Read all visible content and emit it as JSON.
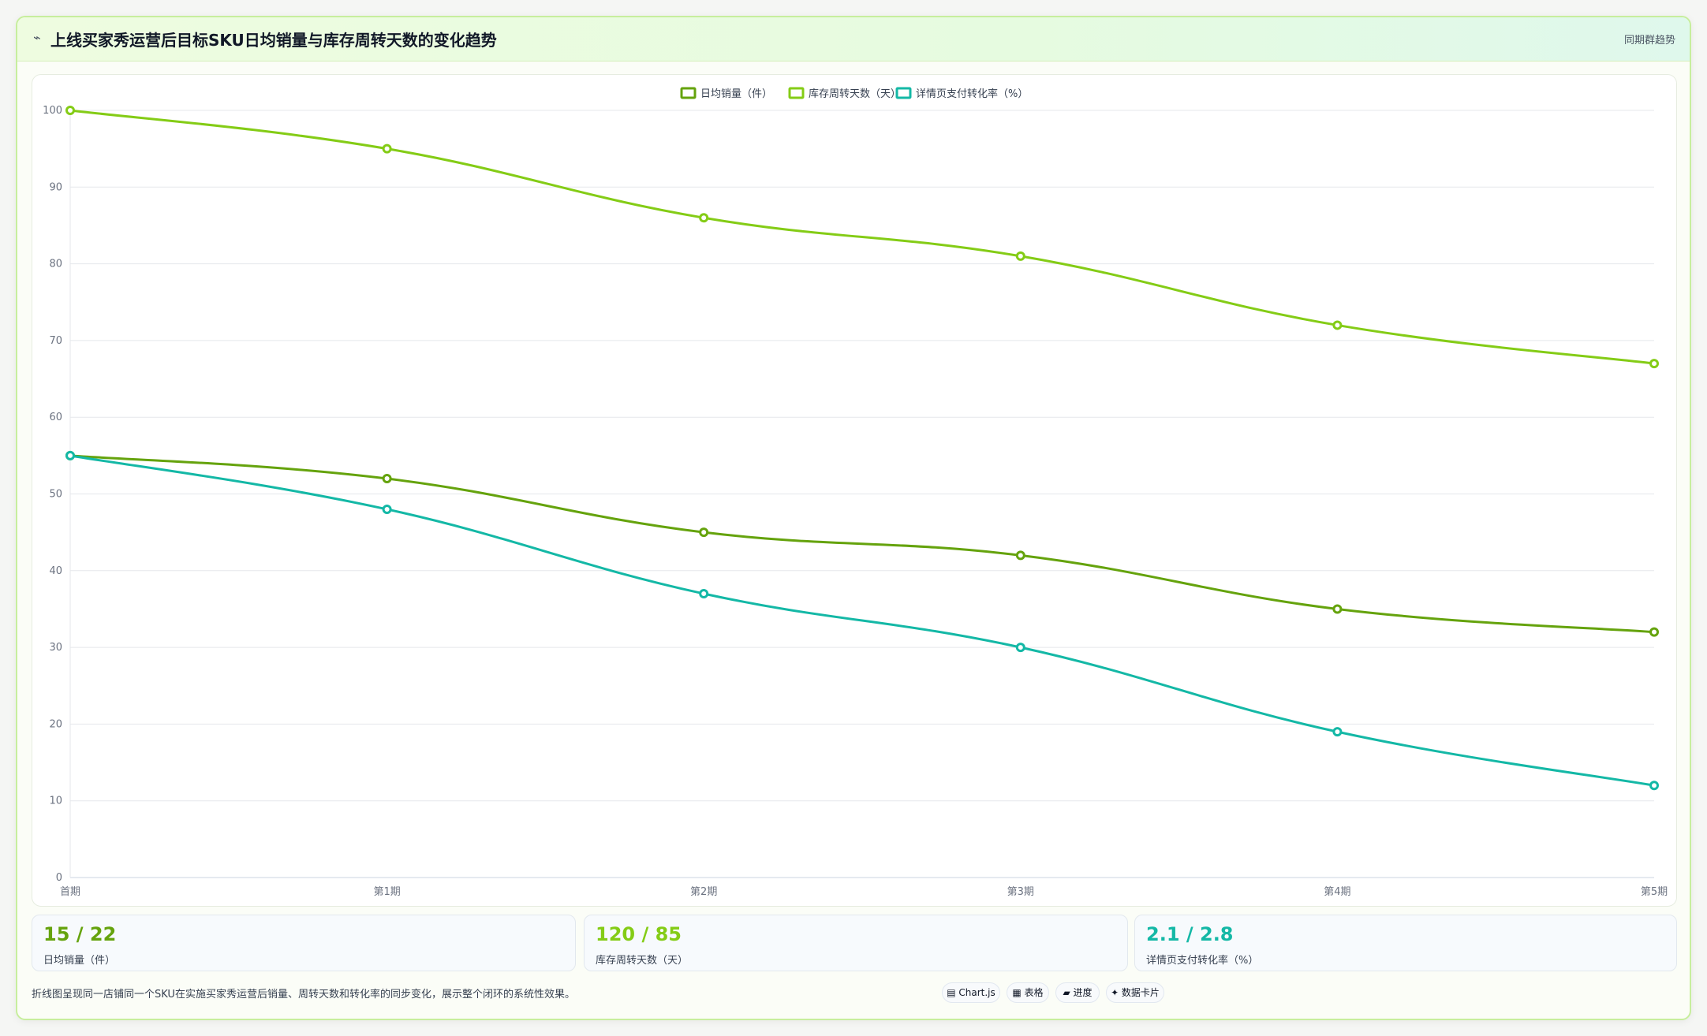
{
  "header": {
    "icon": "trend-icon",
    "icon_glyph": "⌁",
    "title": "上线买家秀运营后目标SKU日均销量与库存周转天数的变化趋势",
    "tag": "同期群趋势"
  },
  "chart_data": {
    "type": "line",
    "categories": [
      "首期",
      "第1期",
      "第2期",
      "第3期",
      "第4期",
      "第5期"
    ],
    "ylim": [
      0,
      100
    ],
    "yticks": [
      0,
      10,
      20,
      30,
      40,
      50,
      60,
      70,
      80,
      90,
      100
    ],
    "grid": true,
    "legend_position": "top-center",
    "series": [
      {
        "name": "日均销量（件）",
        "color": "#65a30d",
        "values": [
          55,
          52,
          45,
          42,
          35,
          32
        ]
      },
      {
        "name": "库存周转天数（天）",
        "color": "#84cc16",
        "values": [
          100,
          95,
          86,
          81,
          72,
          67
        ]
      },
      {
        "name": "详情页支付转化率（%）",
        "color": "#14b8a6",
        "values": [
          55,
          48,
          37,
          30,
          19,
          12
        ]
      }
    ]
  },
  "stats": [
    {
      "value": "15 / 22",
      "label": "日均销量（件）",
      "color": "#65a30d"
    },
    {
      "value": "120 / 85",
      "label": "库存周转天数（天）",
      "color": "#84cc16"
    },
    {
      "value": "2.1 / 2.8",
      "label": "详情页支付转化率（%）",
      "color": "#14b8a6"
    }
  ],
  "footer": {
    "note": "折线图呈现同一店铺同一个SKU在实施买家秀运营后销量、周转天数和转化率的同步变化，展示整个闭环的系统性效果。",
    "badges": [
      "▤ Chart.js",
      "▦ 表格",
      "▰ 进度",
      "✦ 数据卡片"
    ]
  }
}
